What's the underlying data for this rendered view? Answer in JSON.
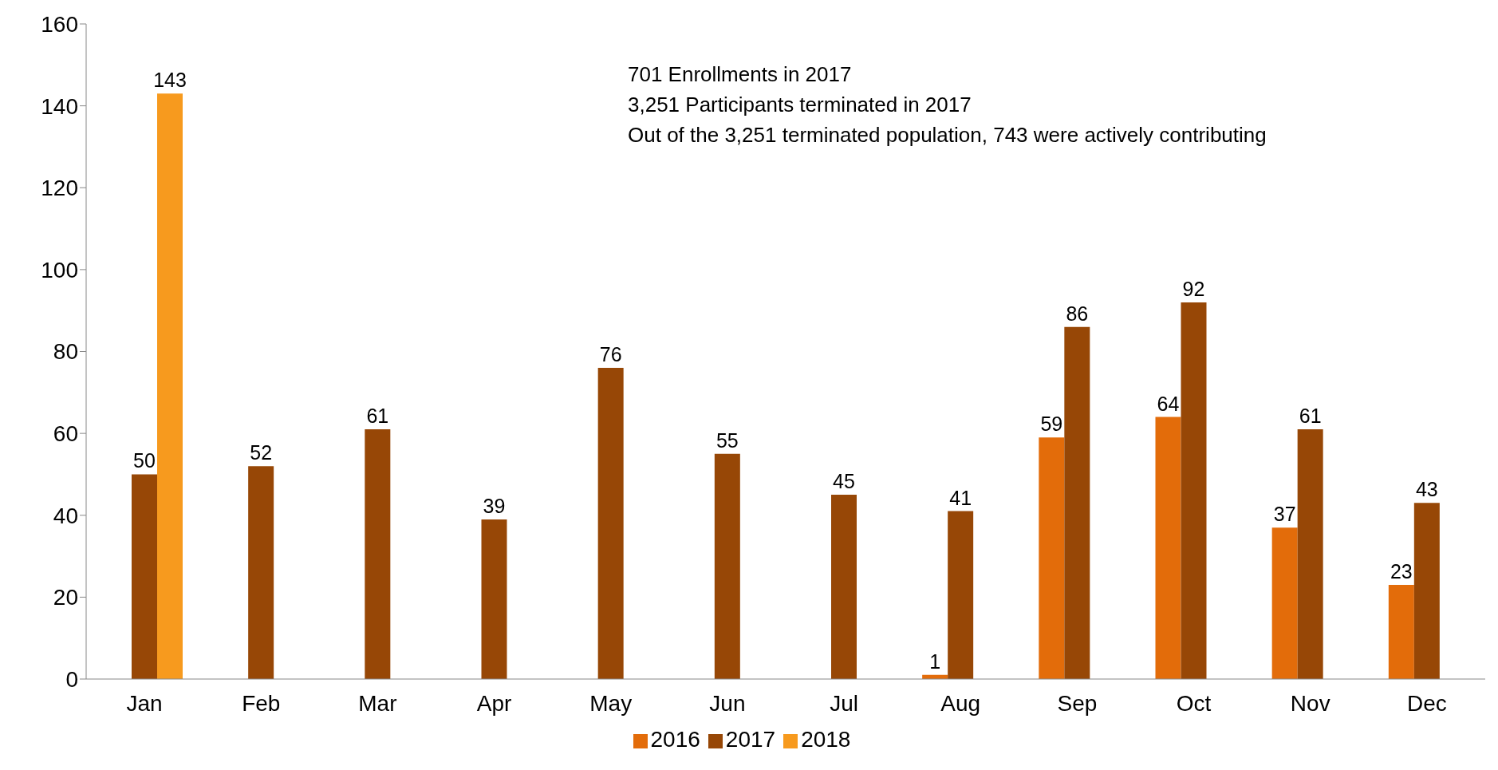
{
  "chart_data": {
    "type": "bar",
    "categories": [
      "Jan",
      "Feb",
      "Mar",
      "Apr",
      "May",
      "Jun",
      "Jul",
      "Aug",
      "Sep",
      "Oct",
      "Nov",
      "Dec"
    ],
    "series": [
      {
        "name": "2016",
        "color": "#e36c0a",
        "values": [
          null,
          null,
          null,
          null,
          null,
          null,
          null,
          1,
          59,
          64,
          37,
          23
        ]
      },
      {
        "name": "2017",
        "color": "#974706",
        "values": [
          50,
          52,
          61,
          39,
          76,
          55,
          45,
          41,
          86,
          92,
          61,
          43
        ]
      },
      {
        "name": "2018",
        "color": "#f79a1e",
        "values": [
          143,
          null,
          null,
          null,
          null,
          null,
          null,
          null,
          null,
          null,
          null,
          null
        ]
      }
    ],
    "ylim": [
      0,
      160
    ],
    "yticks": [
      0,
      20,
      40,
      60,
      80,
      100,
      120,
      140,
      160
    ],
    "grid": false,
    "legend": "bottom",
    "data_labels": true,
    "annotations": [
      "701 Enrollments in 2017",
      "3,251 Participants terminated in 2017",
      "Out of the 3,251 terminated population, 743 were actively contributing"
    ]
  }
}
